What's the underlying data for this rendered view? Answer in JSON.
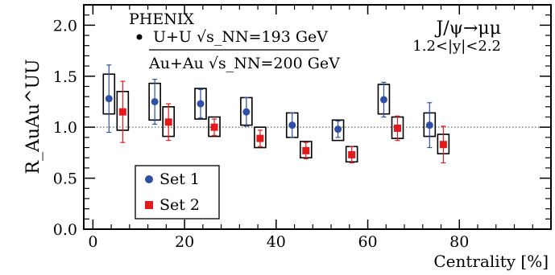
{
  "chart_data": {
    "type": "scatter",
    "experiment": "PHENIX",
    "ratio_numerator": "U+U √s_NN=193 GeV",
    "ratio_denominator": "Au+Au √s_NN=200 GeV",
    "process_label": "J/ψ→μμ",
    "rapidity_label": "1.2<|y|<2.2",
    "xlabel": "Centrality [%]",
    "ylabel": "R_AuAu^UU",
    "xlim": [
      -2,
      100
    ],
    "ylim": [
      0.0,
      2.2
    ],
    "x_ticks": [
      0,
      20,
      40,
      60,
      80
    ],
    "y_ticks": [
      0.0,
      0.5,
      1.0,
      1.5,
      2.0
    ],
    "x_tick_labels": [
      "0",
      "20",
      "40",
      "60",
      "80"
    ],
    "y_tick_labels": [
      "0.0",
      "0.5",
      "1.0",
      "1.5",
      "2.0"
    ],
    "reference_line": 1.0,
    "legend_position": "bottom-left",
    "series": [
      {
        "name": "Set 1",
        "color": "#2e4fa3",
        "marker": "circle",
        "x": [
          3.5,
          13.5,
          23.5,
          33.5,
          43.5,
          53.5,
          63.5,
          73.5
        ],
        "y": [
          1.28,
          1.25,
          1.23,
          1.15,
          1.02,
          0.98,
          1.27,
          1.02
        ],
        "stat_err": [
          0.33,
          0.22,
          0.14,
          0.14,
          0.12,
          0.08,
          0.17,
          0.22
        ],
        "syst_lo": [
          1.13,
          1.07,
          1.08,
          1.02,
          0.9,
          0.87,
          1.13,
          0.91
        ],
        "syst_hi": [
          1.52,
          1.43,
          1.38,
          1.29,
          1.14,
          1.07,
          1.42,
          1.14
        ]
      },
      {
        "name": "Set 2",
        "color": "#e31a1c",
        "marker": "square",
        "x": [
          6.5,
          16.5,
          26.5,
          36.5,
          46.5,
          56.5,
          66.5,
          76.5
        ],
        "y": [
          1.15,
          1.05,
          1.0,
          0.89,
          0.77,
          0.73,
          0.99,
          0.83
        ],
        "stat_err": [
          0.3,
          0.18,
          0.08,
          0.08,
          0.08,
          0.08,
          0.12,
          0.18
        ],
        "syst_lo": [
          0.97,
          0.91,
          0.91,
          0.8,
          0.7,
          0.66,
          0.89,
          0.74
        ],
        "syst_hi": [
          1.35,
          1.2,
          1.1,
          1.0,
          0.86,
          0.81,
          1.1,
          0.93
        ]
      }
    ]
  }
}
